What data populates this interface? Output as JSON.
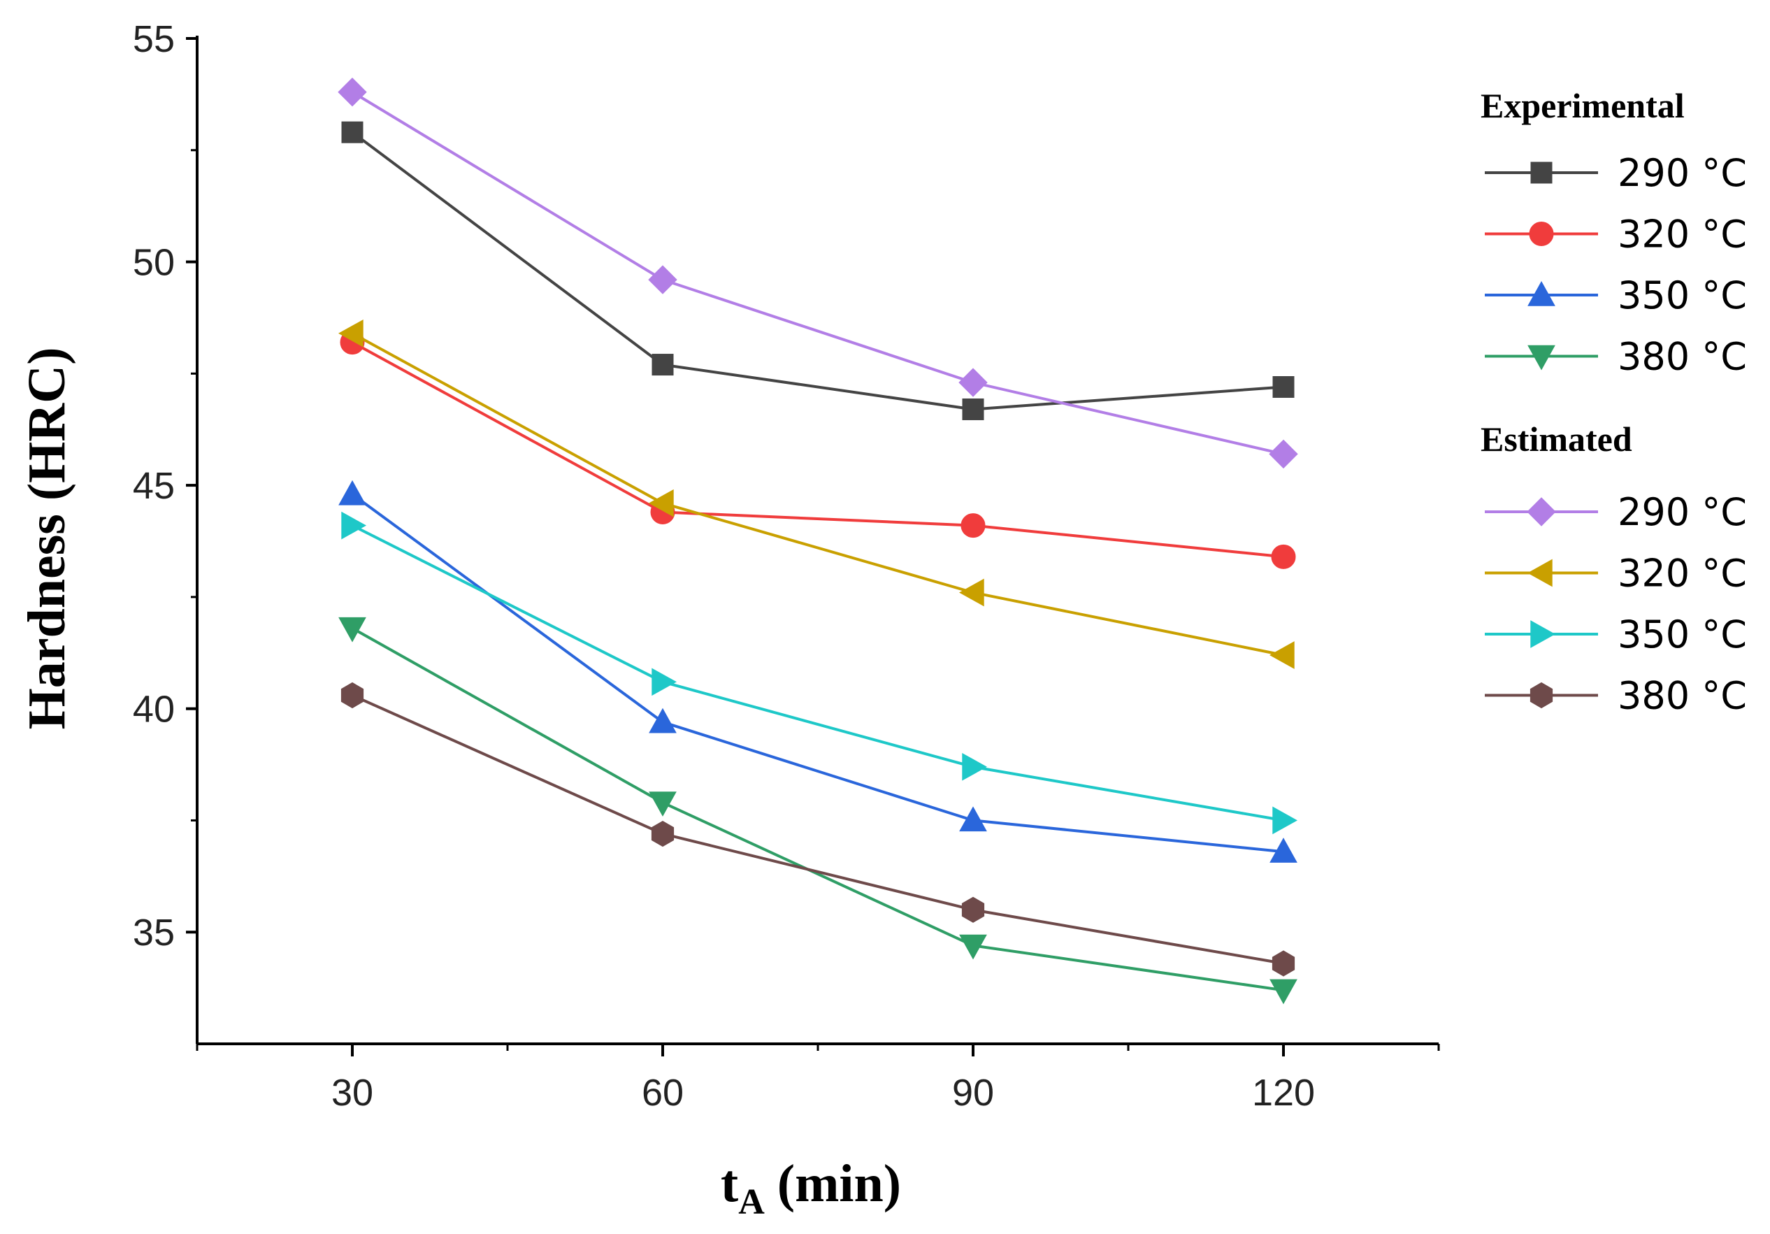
{
  "chart_data": {
    "type": "line",
    "title": "",
    "xlabel_main": "t",
    "xlabel_sub": "A",
    "xlabel_unit": "(min)",
    "ylabel": "Hardness (HRC)",
    "x": [
      30,
      60,
      90,
      120
    ],
    "xlim": [
      15,
      135
    ],
    "ylim": [
      32.5,
      55
    ],
    "xticks": [
      30,
      60,
      90,
      120
    ],
    "yticks": [
      35,
      40,
      45,
      50,
      55
    ],
    "legend_groups": [
      "Experimental",
      "Estimated"
    ],
    "series": [
      {
        "name": "290 °C",
        "group": "Experimental",
        "color": "#444444",
        "marker": "square",
        "values": [
          52.9,
          47.7,
          46.7,
          47.2
        ]
      },
      {
        "name": "320 °C",
        "group": "Experimental",
        "color": "#f03c3c",
        "marker": "circle",
        "values": [
          48.2,
          44.4,
          44.1,
          43.4
        ]
      },
      {
        "name": "350 °C",
        "group": "Experimental",
        "color": "#2a66db",
        "marker": "triangle-up",
        "values": [
          44.8,
          39.7,
          37.5,
          36.8
        ]
      },
      {
        "name": "380 °C",
        "group": "Experimental",
        "color": "#2f9e66",
        "marker": "triangle-down",
        "values": [
          41.8,
          37.9,
          34.7,
          33.7
        ]
      },
      {
        "name": "290 °C",
        "group": "Estimated",
        "color": "#b27ee6",
        "marker": "diamond",
        "values": [
          53.8,
          49.6,
          47.3,
          45.7
        ]
      },
      {
        "name": "320 °C",
        "group": "Estimated",
        "color": "#c9a000",
        "marker": "triangle-left",
        "values": [
          48.4,
          44.6,
          42.6,
          41.2
        ]
      },
      {
        "name": "350 °C",
        "group": "Estimated",
        "color": "#1ec8c8",
        "marker": "triangle-right",
        "values": [
          44.1,
          40.6,
          38.7,
          37.5
        ]
      },
      {
        "name": "380 °C",
        "group": "Estimated",
        "color": "#6e4a4a",
        "marker": "hexagon",
        "values": [
          40.3,
          37.2,
          35.5,
          34.3
        ]
      }
    ]
  }
}
